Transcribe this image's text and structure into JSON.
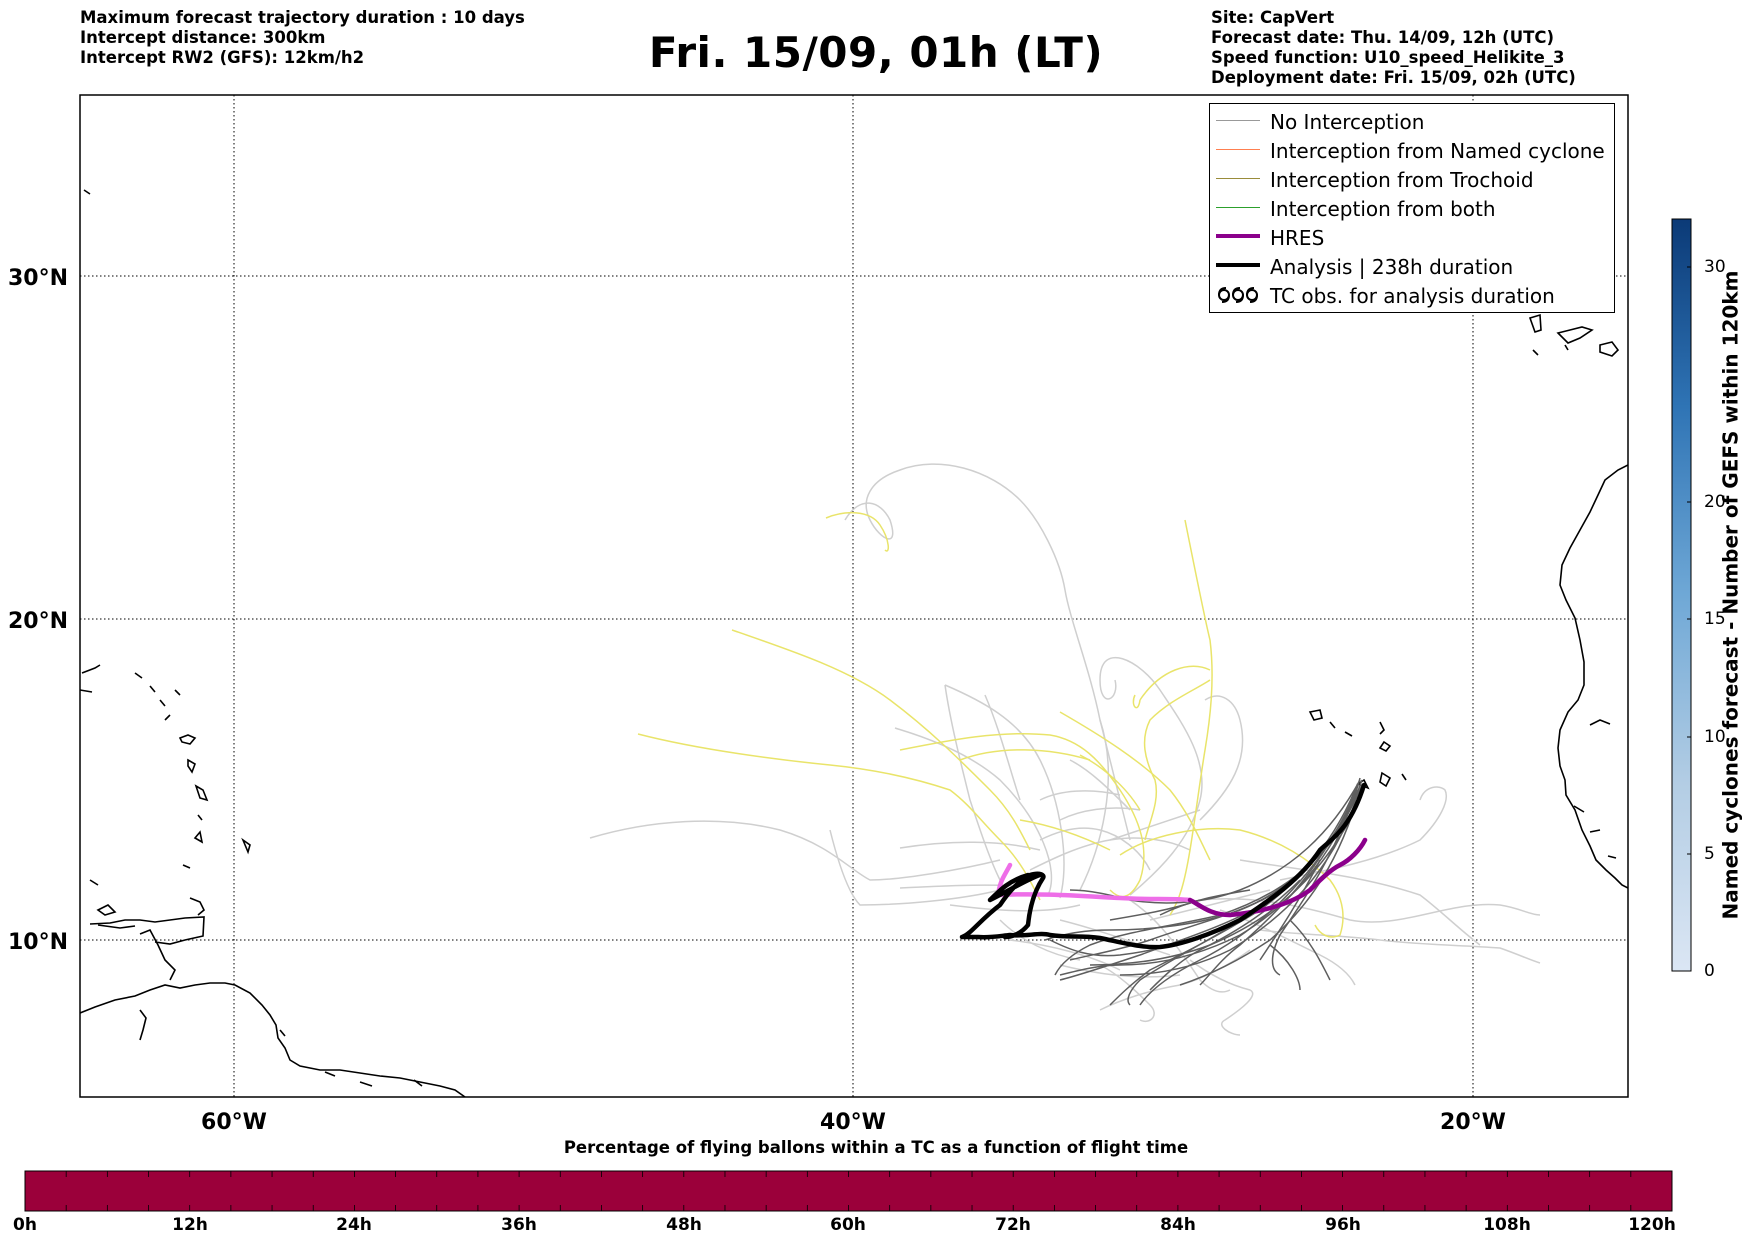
{
  "header_left": [
    "Maximum forecast trajectory duration : 10 days",
    "Intercept distance: 300km",
    "Intercept RW2 (GFS):  12km/h2"
  ],
  "title": "Fri. 15/09, 01h (LT)",
  "header_right": [
    "Site: CapVert",
    "Forecast date: Thu. 14/09, 12h (UTC)",
    "Speed function: U10_speed_Helikite_3",
    "Deployment date: Fri. 15/09, 02h (UTC)"
  ],
  "map": {
    "lat_labels": [
      "30°N",
      "20°N",
      "10°N"
    ],
    "lon_labels": [
      "60°W",
      "40°W",
      "20°W"
    ]
  },
  "legend": [
    {
      "label": "No Interception",
      "color": "#999999",
      "width": 1.5,
      "kind": "line"
    },
    {
      "label": "Interception from Named cyclone",
      "color": "#ff7f50",
      "width": 1.5,
      "kind": "line"
    },
    {
      "label": "Interception from Trochoid",
      "color": "#9a8c3a",
      "width": 1.5,
      "kind": "line"
    },
    {
      "label": "Interception from both",
      "color": "#2ca02c",
      "width": 1.5,
      "kind": "line"
    },
    {
      "label": "HRES",
      "color": "#8b008b",
      "width": 4,
      "kind": "line"
    },
    {
      "label": "Analysis | 238h duration",
      "color": "#000000",
      "width": 4,
      "kind": "line"
    },
    {
      "label": "TC obs. for analysis duration",
      "color": "#000000",
      "width": 0,
      "kind": "tc"
    }
  ],
  "colorbar_vertical": {
    "label": "Named cyclones forecast - Number of GEFS within 120km",
    "ticks": [
      "0",
      "5",
      "10",
      "15",
      "20",
      "30"
    ]
  },
  "colorbar_horizontal": {
    "title": "Percentage of flying ballons within a TC as a function of flight time",
    "color": "#9b003a",
    "ticks": [
      "0h",
      "12h",
      "24h",
      "36h",
      "48h",
      "60h",
      "72h",
      "84h",
      "96h",
      "108h",
      "120h"
    ]
  }
}
